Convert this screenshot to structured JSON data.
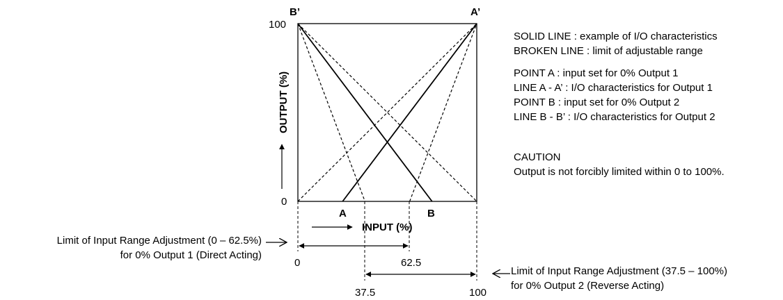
{
  "diagram": {
    "corner_left": "B’",
    "corner_right": "A’",
    "y_label": "OUTPUT (%)",
    "y_tick_top": "100",
    "y_tick_bottom": "0",
    "x_label": "INPUT (%)",
    "point_a": "A",
    "point_b": "B",
    "scale_0": "0",
    "scale_62_5": "62.5",
    "scale_37_5": "37.5",
    "scale_100": "100"
  },
  "legend": {
    "solid_line": "SOLID LINE :  example of I/O characteristics",
    "broken_line": "BROKEN LINE :  limit of adjustable range",
    "point_a": "POINT A :  input set for 0% Output 1",
    "line_a": "LINE A - A’ :  I/O characteristics for Output 1",
    "point_b": "POINT B :  input set for 0% Output 2",
    "line_b": "LINE B - B’ :  I/O characteristics for Output 2",
    "caution_title": "CAUTION",
    "caution_text": "Output is not forcibly limited within 0 to 100%."
  },
  "notes": {
    "left_line1": "Limit of Input Range Adjustment (0 – 62.5%)",
    "left_line2": "for 0% Output 1 (Direct Acting)",
    "right_line1": "Limit of Input Range Adjustment (37.5 – 100%)",
    "right_line2": "for 0% Output 2 (Reverse Acting)"
  },
  "chart_data": {
    "type": "line",
    "xlabel": "INPUT (%)",
    "ylabel": "OUTPUT (%)",
    "xlim": [
      0,
      100
    ],
    "ylim": [
      0,
      100
    ],
    "series": [
      {
        "name": "A - A’",
        "style": "solid",
        "x": [
          25,
          100
        ],
        "y": [
          0,
          100
        ]
      },
      {
        "name": "B - B’",
        "style": "solid",
        "x": [
          0,
          75
        ],
        "y": [
          100,
          0
        ]
      },
      {
        "style": "dashed",
        "x": [
          0,
          100
        ],
        "y": [
          0,
          100
        ]
      },
      {
        "style": "dashed",
        "x": [
          62.5,
          100
        ],
        "y": [
          0,
          100
        ]
      },
      {
        "style": "dashed",
        "x": [
          0,
          100
        ],
        "y": [
          100,
          0
        ]
      },
      {
        "style": "dashed",
        "x": [
          0,
          37.5
        ],
        "y": [
          100,
          0
        ]
      }
    ],
    "ranges": [
      {
        "name": "Output 1 (Direct Acting)",
        "from": 0,
        "to": 62.5
      },
      {
        "name": "Output 2 (Reverse Acting)",
        "from": 37.5,
        "to": 100
      }
    ]
  }
}
